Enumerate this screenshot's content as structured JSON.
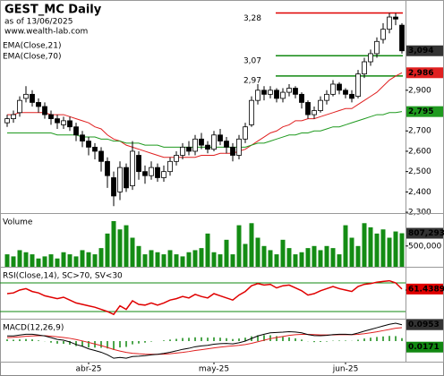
{
  "header": {
    "title": "GEST_MC Daily",
    "date": "as of 13/06/2025",
    "site": "www.wealth-lab.com"
  },
  "chart_data": [
    {
      "type": "candlestick",
      "open": [
        2.74,
        2.76,
        2.79,
        2.86,
        2.88,
        2.84,
        2.82,
        2.78,
        2.76,
        2.73,
        2.75,
        2.72,
        2.68,
        2.65,
        2.62,
        2.6,
        2.55,
        2.47,
        2.4,
        2.52,
        2.43,
        2.58,
        2.5,
        2.48,
        2.52,
        2.47,
        2.5,
        2.55,
        2.58,
        2.62,
        2.6,
        2.66,
        2.63,
        2.61,
        2.68,
        2.65,
        2.62,
        2.58,
        2.66,
        2.73,
        2.85,
        2.9,
        2.88,
        2.9,
        2.86,
        2.89,
        2.91,
        2.88,
        2.84,
        2.78,
        2.8,
        2.85,
        2.88,
        2.93,
        2.9,
        2.88,
        2.87,
        2.98,
        3.04,
        3.08,
        3.15,
        3.2,
        3.26,
        3.22
      ],
      "high": [
        2.78,
        2.8,
        2.87,
        2.92,
        2.9,
        2.86,
        2.84,
        2.8,
        2.78,
        2.77,
        2.77,
        2.74,
        2.7,
        2.67,
        2.64,
        2.62,
        2.57,
        2.5,
        2.55,
        2.54,
        2.65,
        2.6,
        2.53,
        2.55,
        2.54,
        2.53,
        2.57,
        2.6,
        2.64,
        2.65,
        2.68,
        2.69,
        2.65,
        2.7,
        2.71,
        2.67,
        2.64,
        2.68,
        2.74,
        2.87,
        2.93,
        2.92,
        2.92,
        2.91,
        2.91,
        2.93,
        2.92,
        2.89,
        2.85,
        2.82,
        2.87,
        2.9,
        2.95,
        2.94,
        2.91,
        2.9,
        3.0,
        3.06,
        3.1,
        3.16,
        3.23,
        3.28,
        3.28,
        3.23
      ],
      "low": [
        2.72,
        2.74,
        2.77,
        2.84,
        2.82,
        2.79,
        2.76,
        2.73,
        2.71,
        2.71,
        2.7,
        2.65,
        2.62,
        2.58,
        2.56,
        2.5,
        2.42,
        2.33,
        2.36,
        2.4,
        2.41,
        2.46,
        2.44,
        2.46,
        2.45,
        2.45,
        2.48,
        2.53,
        2.56,
        2.58,
        2.58,
        2.61,
        2.59,
        2.6,
        2.63,
        2.59,
        2.55,
        2.56,
        2.64,
        2.72,
        2.83,
        2.85,
        2.86,
        2.84,
        2.84,
        2.87,
        2.86,
        2.81,
        2.76,
        2.76,
        2.79,
        2.83,
        2.87,
        2.88,
        2.86,
        2.84,
        2.86,
        2.96,
        3.02,
        3.06,
        3.13,
        3.18,
        3.22,
        3.08
      ],
      "close": [
        2.76,
        2.78,
        2.85,
        2.88,
        2.84,
        2.82,
        2.78,
        2.76,
        2.74,
        2.75,
        2.72,
        2.68,
        2.65,
        2.62,
        2.6,
        2.55,
        2.48,
        2.38,
        2.52,
        2.42,
        2.6,
        2.5,
        2.48,
        2.52,
        2.47,
        2.5,
        2.55,
        2.58,
        2.62,
        2.6,
        2.66,
        2.63,
        2.61,
        2.68,
        2.65,
        2.62,
        2.58,
        2.66,
        2.72,
        2.85,
        2.9,
        2.88,
        2.9,
        2.86,
        2.89,
        2.91,
        2.88,
        2.84,
        2.78,
        2.8,
        2.85,
        2.88,
        2.93,
        2.9,
        2.88,
        2.86,
        2.98,
        3.04,
        3.08,
        3.14,
        3.2,
        3.26,
        3.25,
        3.094
      ],
      "value_label": "3,094",
      "label_color": "#333333",
      "up_color": "#ffffff",
      "down_color": "#000000",
      "series": [
        {
          "name": "EMA(Close,21)",
          "color": "#e02020",
          "value_label": "2,986",
          "values": [
            2.78,
            2.78,
            2.79,
            2.79,
            2.79,
            2.79,
            2.79,
            2.78,
            2.78,
            2.78,
            2.77,
            2.76,
            2.75,
            2.74,
            2.72,
            2.71,
            2.68,
            2.66,
            2.65,
            2.63,
            2.62,
            2.61,
            2.6,
            2.59,
            2.58,
            2.57,
            2.57,
            2.57,
            2.57,
            2.57,
            2.57,
            2.58,
            2.58,
            2.58,
            2.59,
            2.59,
            2.59,
            2.6,
            2.61,
            2.63,
            2.65,
            2.67,
            2.69,
            2.7,
            2.72,
            2.73,
            2.75,
            2.75,
            2.76,
            2.76,
            2.77,
            2.78,
            2.79,
            2.8,
            2.81,
            2.81,
            2.83,
            2.85,
            2.87,
            2.89,
            2.92,
            2.95,
            2.97,
            2.986
          ]
        },
        {
          "name": "EMA(Close,70)",
          "color": "#1f9a1f",
          "value_label": "2,795",
          "values": [
            2.69,
            2.69,
            2.69,
            2.69,
            2.69,
            2.69,
            2.69,
            2.69,
            2.68,
            2.68,
            2.68,
            2.68,
            2.67,
            2.67,
            2.67,
            2.66,
            2.66,
            2.65,
            2.65,
            2.64,
            2.64,
            2.64,
            2.63,
            2.63,
            2.63,
            2.62,
            2.62,
            2.62,
            2.62,
            2.62,
            2.62,
            2.62,
            2.62,
            2.62,
            2.62,
            2.62,
            2.62,
            2.62,
            2.62,
            2.63,
            2.64,
            2.64,
            2.65,
            2.66,
            2.67,
            2.68,
            2.68,
            2.69,
            2.69,
            2.7,
            2.7,
            2.71,
            2.72,
            2.72,
            2.73,
            2.74,
            2.75,
            2.76,
            2.77,
            2.78,
            2.78,
            2.79,
            2.79,
            2.795
          ]
        }
      ],
      "levels": [
        {
          "value": 3.28,
          "label": "3,28",
          "color": "#e00000"
        },
        {
          "value": 3.07,
          "label": "3,07",
          "color": "#118811"
        },
        {
          "value": 2.97,
          "label": "2,97",
          "color": "#118811"
        }
      ],
      "ylim": [
        2.296,
        3.335
      ],
      "yticks": [
        {
          "value": 2.9,
          "label": "2,900"
        },
        {
          "value": 2.7,
          "label": "2,700"
        },
        {
          "value": 2.6,
          "label": "2,600"
        },
        {
          "value": 2.5,
          "label": "2,500"
        },
        {
          "value": 2.4,
          "label": "2,400"
        },
        {
          "value": 2.3,
          "label": "2,300"
        }
      ],
      "xticks": [
        {
          "value": 13,
          "label": "abr-25"
        },
        {
          "value": 33,
          "label": "may-25"
        },
        {
          "value": 54,
          "label": "jun-25"
        }
      ]
    },
    {
      "type": "bar",
      "title": "Volume",
      "color": "#148c14",
      "label_color": "#333333",
      "values": [
        300000,
        250000,
        400000,
        350000,
        300000,
        200000,
        250000,
        300000,
        200000,
        350000,
        300000,
        250000,
        400000,
        350000,
        300000,
        450000,
        800000,
        1100000,
        900000,
        1000000,
        700000,
        500000,
        300000,
        400000,
        350000,
        300000,
        400000,
        300000,
        250000,
        350000,
        400000,
        450000,
        800000,
        350000,
        300000,
        650000,
        300000,
        1000000,
        550000,
        1050000,
        700000,
        500000,
        400000,
        300000,
        650000,
        450000,
        300000,
        350000,
        450000,
        500000,
        400000,
        500000,
        450000,
        300000,
        1000000,
        700000,
        500000,
        1050000,
        950000,
        800000,
        900000,
        700000,
        850000,
        807293
      ],
      "value_label": "807,293",
      "ylim": [
        0,
        1250000
      ],
      "yticks": [
        {
          "value": 500000,
          "label": "500,000"
        }
      ]
    },
    {
      "type": "line",
      "title": "RSI(Close,14), SC>70, SV<30",
      "color": "#e00000",
      "label_color": "#e00000",
      "values": [
        55,
        56,
        60,
        62,
        58,
        56,
        52,
        50,
        48,
        50,
        46,
        42,
        40,
        38,
        36,
        33,
        30,
        26,
        38,
        33,
        45,
        40,
        39,
        42,
        39,
        42,
        46,
        48,
        51,
        49,
        54,
        51,
        49,
        55,
        52,
        49,
        46,
        53,
        58,
        66,
        69,
        67,
        68,
        63,
        66,
        67,
        63,
        59,
        53,
        55,
        59,
        62,
        65,
        62,
        60,
        58,
        65,
        68,
        69,
        71,
        72,
        73,
        70,
        61.4389
      ],
      "levels": [
        {
          "value": 70,
          "color": "#118811"
        },
        {
          "value": 30,
          "color": "#118811"
        }
      ],
      "ylim": [
        20,
        90
      ],
      "yticks": [
        60
      ]
    },
    {
      "type": "macd",
      "title": "MACD(12,26,9)",
      "macd": [
        0.03,
        0.03,
        0.035,
        0.04,
        0.04,
        0.035,
        0.03,
        0.02,
        0.01,
        0.005,
        -0.005,
        -0.02,
        -0.03,
        -0.045,
        -0.055,
        -0.065,
        -0.08,
        -0.1,
        -0.095,
        -0.1,
        -0.09,
        -0.088,
        -0.085,
        -0.08,
        -0.077,
        -0.072,
        -0.065,
        -0.057,
        -0.048,
        -0.042,
        -0.033,
        -0.028,
        -0.025,
        -0.018,
        -0.015,
        -0.014,
        -0.016,
        -0.01,
        0.0,
        0.015,
        0.03,
        0.04,
        0.048,
        0.05,
        0.052,
        0.055,
        0.053,
        0.048,
        0.038,
        0.032,
        0.031,
        0.033,
        0.038,
        0.04,
        0.04,
        0.038,
        0.047,
        0.058,
        0.068,
        0.078,
        0.088,
        0.098,
        0.104,
        0.0953
      ],
      "signal": [
        0.02,
        0.022,
        0.025,
        0.028,
        0.03,
        0.031,
        0.031,
        0.029,
        0.025,
        0.021,
        0.016,
        0.009,
        0.001,
        -0.008,
        -0.017,
        -0.026,
        -0.037,
        -0.049,
        -0.058,
        -0.066,
        -0.071,
        -0.074,
        -0.076,
        -0.077,
        -0.077,
        -0.076,
        -0.074,
        -0.07,
        -0.066,
        -0.061,
        -0.055,
        -0.05,
        -0.045,
        -0.04,
        -0.035,
        -0.031,
        -0.028,
        -0.025,
        -0.02,
        -0.013,
        -0.004,
        0.005,
        0.014,
        0.021,
        0.027,
        0.033,
        0.037,
        0.039,
        0.039,
        0.038,
        0.036,
        0.036,
        0.036,
        0.037,
        0.037,
        0.037,
        0.039,
        0.043,
        0.048,
        0.054,
        0.061,
        0.068,
        0.075,
        0.0782
      ],
      "histogram": [
        0.01,
        0.008,
        0.01,
        0.012,
        0.01,
        0.004,
        -0.001,
        -0.009,
        -0.015,
        -0.016,
        -0.021,
        -0.029,
        -0.031,
        -0.037,
        -0.038,
        -0.039,
        -0.043,
        -0.051,
        -0.037,
        -0.034,
        -0.019,
        -0.014,
        -0.009,
        -0.003,
        0,
        0.004,
        0.009,
        0.013,
        0.018,
        0.019,
        0.022,
        0.022,
        0.02,
        0.022,
        0.02,
        0.017,
        0.012,
        0.015,
        0.02,
        0.028,
        0.034,
        0.035,
        0.034,
        0.029,
        0.025,
        0.022,
        0.016,
        0.009,
        -0.001,
        -0.006,
        -0.005,
        -0.003,
        0.002,
        0.003,
        0.003,
        0.001,
        0.008,
        0.015,
        0.02,
        0.024,
        0.027,
        0.03,
        0.029,
        0.0171
      ],
      "macd_color": "#000000",
      "signal_color": "#e02020",
      "histogram_color": "#118811",
      "label_color": "#333333",
      "ylim": [
        -0.12,
        0.12
      ]
    }
  ]
}
